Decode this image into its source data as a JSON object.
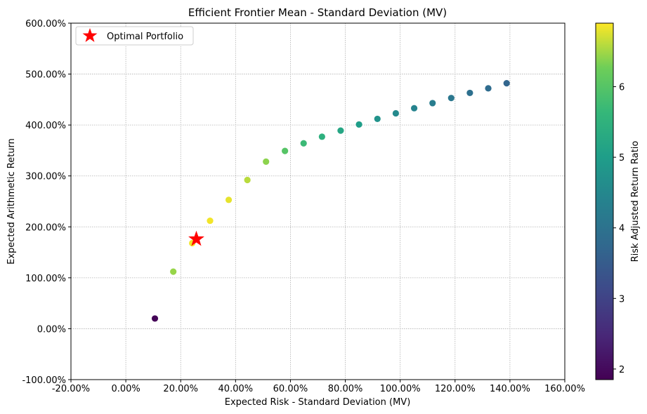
{
  "chart_data": {
    "type": "scatter",
    "title": "Efficient Frontier Mean - Standard Deviation (MV)",
    "xlabel": "Expected Risk - Standard Deviation (MV)",
    "ylabel": "Expected Arithmetic Return",
    "colorbar_label": "Risk Adjusted Return Ratio",
    "xlim": [
      -0.2,
      1.6
    ],
    "ylim": [
      -1.0,
      6.0
    ],
    "x_ticks": [
      -0.2,
      0.0,
      0.2,
      0.4,
      0.6,
      0.8,
      1.0,
      1.2,
      1.4,
      1.6
    ],
    "x_tick_labels": [
      "-20.00%",
      "0.00%",
      "20.00%",
      "40.00%",
      "60.00%",
      "80.00%",
      "100.00%",
      "120.00%",
      "140.00%",
      "160.00%"
    ],
    "y_ticks": [
      -1.0,
      0.0,
      1.0,
      2.0,
      3.0,
      4.0,
      5.0,
      6.0
    ],
    "y_tick_labels": [
      "-100.00%",
      "0.00%",
      "100.00%",
      "200.00%",
      "300.00%",
      "400.00%",
      "500.00%",
      "600.00%"
    ],
    "colorbar_range": [
      1.85,
      6.9
    ],
    "colorbar_ticks": [
      2,
      3,
      4,
      5,
      6
    ],
    "colorbar_tick_labels": [
      "2",
      "3",
      "4",
      "5",
      "6"
    ],
    "colormap": "viridis",
    "grid": true,
    "legend": {
      "position": "top-left",
      "label": "Optimal Portfolio",
      "marker_color": "#ff0000"
    },
    "points": [
      {
        "x": 0.106,
        "y": 0.2,
        "ratio": 1.9
      },
      {
        "x": 0.173,
        "y": 1.12,
        "ratio": 6.45
      },
      {
        "x": 0.242,
        "y": 1.68,
        "ratio": 6.85
      },
      {
        "x": 0.307,
        "y": 2.12,
        "ratio": 6.85
      },
      {
        "x": 0.375,
        "y": 2.53,
        "ratio": 6.8
      },
      {
        "x": 0.443,
        "y": 2.92,
        "ratio": 6.6
      },
      {
        "x": 0.511,
        "y": 3.28,
        "ratio": 6.4
      },
      {
        "x": 0.58,
        "y": 3.49,
        "ratio": 6.0
      },
      {
        "x": 0.648,
        "y": 3.64,
        "ratio": 5.7
      },
      {
        "x": 0.715,
        "y": 3.77,
        "ratio": 5.45
      },
      {
        "x": 0.783,
        "y": 3.89,
        "ratio": 5.2
      },
      {
        "x": 0.85,
        "y": 4.01,
        "ratio": 5.0
      },
      {
        "x": 0.917,
        "y": 4.12,
        "ratio": 4.75
      },
      {
        "x": 0.984,
        "y": 4.23,
        "ratio": 4.55
      },
      {
        "x": 1.051,
        "y": 4.33,
        "ratio": 4.4
      },
      {
        "x": 1.118,
        "y": 4.43,
        "ratio": 4.25
      },
      {
        "x": 1.186,
        "y": 4.53,
        "ratio": 4.1
      },
      {
        "x": 1.254,
        "y": 4.63,
        "ratio": 3.95
      },
      {
        "x": 1.321,
        "y": 4.72,
        "ratio": 3.85
      },
      {
        "x": 1.388,
        "y": 4.82,
        "ratio": 3.7
      }
    ],
    "optimal": {
      "x": 0.257,
      "y": 1.76
    }
  }
}
